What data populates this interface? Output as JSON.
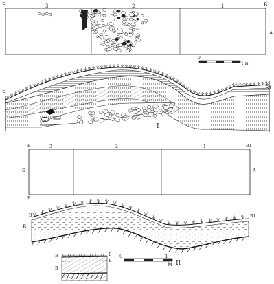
{
  "plan_top": {
    "corner_left": "Б",
    "corner_right": "Б1",
    "side_right": "А",
    "squares": [
      "3",
      "2",
      "1"
    ]
  },
  "scale_bar_top": {
    "start": "0",
    "end": "1 м"
  },
  "section_I": {
    "end_left": "Б",
    "end_right": "Б1",
    "numeral": "I"
  },
  "plan_mid": {
    "corner_top_left": "В",
    "corner_top_right": "В1",
    "corner_bottom_left": "В",
    "side_left": "Б",
    "side_right": "А",
    "squares": [
      "3",
      "2",
      "1"
    ]
  },
  "section_II": {
    "end_left": "В",
    "end_right": "В1",
    "side_left": "Б",
    "numeral": "II"
  },
  "scale_bar_bottom": {
    "start": "0",
    "end": "1",
    "unit": "М"
  },
  "inset": {
    "label_left": "В",
    "label_right": "Б",
    "label_right2": "Б",
    "side_left": "В"
  }
}
